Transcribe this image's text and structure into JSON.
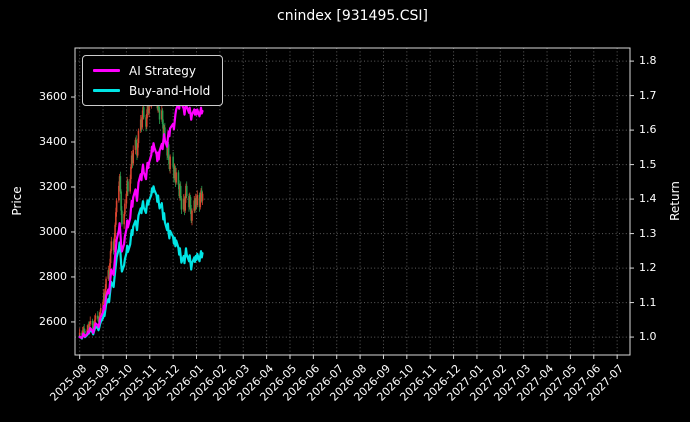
{
  "chart": {
    "title": "cnindex [931495.CSI]",
    "price_axis_label": "Price",
    "return_axis_label": "Return"
  },
  "legend": {
    "position": "upper left",
    "items": [
      {
        "label": "AI Strategy",
        "color": "#ff00ff"
      },
      {
        "label": "Buy-and-Hold",
        "color": "#00e5e5"
      }
    ]
  },
  "colors": {
    "background": "#000000",
    "text": "#ffffff",
    "grid": "#5e5e5e",
    "spine": "#d9d9d9",
    "candle_up": "#d9442f",
    "candle_down": "#2a9d4e",
    "ai_strategy": "#ff00ff",
    "buy_and_hold": "#00e5e5"
  },
  "chart_data": {
    "type": "candlestick_with_lines",
    "title": "cnindex [931495.CSI]",
    "xlabel": "",
    "ylabel_left": "Price",
    "ylabel_right": "Return",
    "grid": {
      "show": true,
      "line_style": "dotted"
    },
    "x_axis": {
      "domain": [
        -0.2,
        23.55
      ],
      "tick_labels": [
        "2025-08",
        "2025-09",
        "2025-10",
        "2025-11",
        "2025-12",
        "2026-01",
        "2026-02",
        "2026-03",
        "2026-04",
        "2026-05",
        "2026-06",
        "2026-07",
        "2026-08",
        "2026-09",
        "2026-10",
        "2026-11",
        "2026-12",
        "2027-01",
        "2027-02",
        "2027-03",
        "2027-04",
        "2027-05",
        "2027-06",
        "2027-07"
      ]
    },
    "price_axis": {
      "label": "Price",
      "min": 2453,
      "max": 3818,
      "ticks": [
        2600,
        2800,
        3000,
        3200,
        3400,
        3600
      ]
    },
    "return_axis": {
      "label": "Return",
      "min": 0.948,
      "max": 1.838,
      "ticks": [
        1.0,
        1.1,
        1.2,
        1.3,
        1.4,
        1.5,
        1.6,
        1.7,
        1.8
      ]
    },
    "candles": {
      "up_color": "#d9442f",
      "down_color": "#2a9d4e",
      "dates": [
        "2025-08-01",
        "2025-08-04",
        "2025-08-05",
        "2025-08-06",
        "2025-08-07",
        "2025-08-08",
        "2025-08-11",
        "2025-08-12",
        "2025-08-13",
        "2025-08-14",
        "2025-08-15",
        "2025-08-18",
        "2025-08-19",
        "2025-08-20",
        "2025-08-21",
        "2025-08-22",
        "2025-08-25",
        "2025-08-26",
        "2025-08-27",
        "2025-08-28",
        "2025-08-29",
        "2025-09-01",
        "2025-09-02",
        "2025-09-03",
        "2025-09-04",
        "2025-09-05",
        "2025-09-08",
        "2025-09-09",
        "2025-09-10",
        "2025-09-11",
        "2025-09-12",
        "2025-09-15",
        "2025-09-16",
        "2025-09-17",
        "2025-09-18",
        "2025-09-19",
        "2025-09-22",
        "2025-09-23",
        "2025-09-24",
        "2025-09-25",
        "2025-09-26",
        "2025-09-29",
        "2025-09-30",
        "2025-10-01",
        "2025-10-02",
        "2025-10-03",
        "2025-10-06",
        "2025-10-07",
        "2025-10-08",
        "2025-10-09",
        "2025-10-10",
        "2025-10-13",
        "2025-10-14",
        "2025-10-15",
        "2025-10-16",
        "2025-10-17",
        "2025-10-20",
        "2025-10-21",
        "2025-10-22",
        "2025-10-23",
        "2025-10-24",
        "2025-10-27",
        "2025-10-28",
        "2025-10-29",
        "2025-10-30",
        "2025-10-31",
        "2025-11-03",
        "2025-11-04",
        "2025-11-05",
        "2025-11-06",
        "2025-11-07",
        "2025-11-10",
        "2025-11-11",
        "2025-11-12",
        "2025-11-13",
        "2025-11-14",
        "2025-11-17",
        "2025-11-18",
        "2025-11-19",
        "2025-11-20",
        "2025-11-21",
        "2025-11-24",
        "2025-11-25",
        "2025-11-26",
        "2025-11-27",
        "2025-11-28",
        "2025-12-01",
        "2025-12-02",
        "2025-12-03",
        "2025-12-04",
        "2025-12-05",
        "2025-12-08",
        "2025-12-09",
        "2025-12-10",
        "2025-12-11",
        "2025-12-12",
        "2025-12-15",
        "2025-12-16",
        "2025-12-17",
        "2025-12-18",
        "2025-12-19",
        "2025-12-22",
        "2025-12-23",
        "2025-12-24",
        "2025-12-25",
        "2025-12-26",
        "2025-12-29",
        "2025-12-30",
        "2025-12-31",
        "2026-01-01",
        "2026-01-02",
        "2026-01-05",
        "2026-01-06",
        "2026-01-07",
        "2026-01-08",
        "2026-01-09"
      ],
      "open": [
        2538,
        2552,
        2540,
        2558,
        2571,
        2560,
        2549,
        2566,
        2582,
        2575,
        2590,
        2604,
        2585,
        2571,
        2592,
        2610,
        2628,
        2615,
        2600,
        2622,
        2645,
        2662,
        2690,
        2726,
        2705,
        2748,
        2792,
        2830,
        2808,
        2861,
        2915,
        2958,
        2920,
        2975,
        3032,
        3088,
        3140,
        3205,
        3248,
        3180,
        3095,
        3034,
        3080,
        3126,
        3170,
        3225,
        3180,
        3235,
        3290,
        3340,
        3305,
        3365,
        3410,
        3380,
        3340,
        3395,
        3450,
        3500,
        3465,
        3520,
        3555,
        3510,
        3468,
        3525,
        3560,
        3530,
        3558,
        3600,
        3648,
        3620,
        3665,
        3640,
        3598,
        3550,
        3595,
        3545,
        3500,
        3540,
        3480,
        3420,
        3465,
        3400,
        3340,
        3390,
        3320,
        3280,
        3335,
        3290,
        3240,
        3285,
        3220,
        3265,
        3210,
        3160,
        3205,
        3150,
        3100,
        3148,
        3095,
        3150,
        3205,
        3160,
        3110,
        3155,
        3100,
        3050,
        3095,
        3140,
        3105,
        3150,
        3120,
        3165,
        3110,
        3155,
        3185,
        3140
      ],
      "high": [
        2572,
        2562,
        2578,
        2581,
        2591,
        2570,
        2586,
        2592,
        2602,
        2600,
        2624,
        2614,
        2605,
        2602,
        2630,
        2638,
        2648,
        2625,
        2642,
        2655,
        2682,
        2700,
        2746,
        2736,
        2768,
        2802,
        2850,
        2840,
        2881,
        2925,
        2978,
        2968,
        2995,
        3042,
        3108,
        3150,
        3225,
        3258,
        3268,
        3190,
        3115,
        3090,
        3146,
        3180,
        3245,
        3235,
        3255,
        3300,
        3360,
        3350,
        3385,
        3420,
        3430,
        3390,
        3415,
        3460,
        3520,
        3510,
        3540,
        3565,
        3575,
        3520,
        3545,
        3570,
        3580,
        3568,
        3620,
        3658,
        3668,
        3675,
        3685,
        3650,
        3618,
        3605,
        3615,
        3555,
        3560,
        3550,
        3500,
        3475,
        3485,
        3410,
        3410,
        3400,
        3340,
        3345,
        3355,
        3300,
        3305,
        3295,
        3285,
        3275,
        3230,
        3215,
        3225,
        3160,
        3168,
        3158,
        3170,
        3215,
        3225,
        3170,
        3175,
        3165,
        3120,
        3105,
        3160,
        3150,
        3170,
        3160,
        3185,
        3175,
        3175,
        3195,
        3205,
        3180
      ],
      "low": [
        2528,
        2520,
        2530,
        2538,
        2550,
        2529,
        2539,
        2546,
        2565,
        2555,
        2580,
        2565,
        2561,
        2551,
        2582,
        2590,
        2605,
        2580,
        2590,
        2602,
        2635,
        2642,
        2680,
        2685,
        2695,
        2728,
        2782,
        2788,
        2798,
        2841,
        2905,
        2900,
        2910,
        2955,
        3022,
        3068,
        3130,
        3185,
        3170,
        3075,
        3024,
        3014,
        3070,
        3106,
        3160,
        3160,
        3170,
        3215,
        3280,
        3285,
        3295,
        3345,
        3370,
        3320,
        3330,
        3375,
        3440,
        3445,
        3455,
        3500,
        3500,
        3448,
        3458,
        3505,
        3520,
        3510,
        3548,
        3580,
        3610,
        3600,
        3630,
        3578,
        3540,
        3530,
        3535,
        3480,
        3490,
        3460,
        3410,
        3400,
        3390,
        3320,
        3330,
        3300,
        3270,
        3260,
        3280,
        3220,
        3230,
        3200,
        3210,
        3190,
        3150,
        3140,
        3140,
        3080,
        3090,
        3075,
        3085,
        3130,
        3150,
        3090,
        3100,
        3080,
        3040,
        3030,
        3085,
        3085,
        3095,
        3100,
        3110,
        3090,
        3100,
        3135,
        3130,
        3120
      ],
      "close": [
        2552,
        2540,
        2558,
        2571,
        2560,
        2549,
        2566,
        2582,
        2575,
        2590,
        2604,
        2585,
        2571,
        2592,
        2610,
        2628,
        2615,
        2600,
        2622,
        2645,
        2662,
        2690,
        2726,
        2705,
        2748,
        2792,
        2830,
        2808,
        2861,
        2915,
        2958,
        2920,
        2975,
        3032,
        3088,
        3140,
        3205,
        3248,
        3180,
        3095,
        3034,
        3080,
        3126,
        3170,
        3225,
        3180,
        3235,
        3290,
        3340,
        3305,
        3365,
        3410,
        3380,
        3340,
        3395,
        3450,
        3500,
        3465,
        3520,
        3555,
        3510,
        3468,
        3525,
        3560,
        3530,
        3558,
        3600,
        3648,
        3620,
        3665,
        3640,
        3598,
        3550,
        3595,
        3545,
        3500,
        3540,
        3480,
        3420,
        3465,
        3400,
        3340,
        3390,
        3320,
        3280,
        3335,
        3290,
        3240,
        3285,
        3220,
        3265,
        3210,
        3160,
        3205,
        3150,
        3100,
        3148,
        3095,
        3150,
        3205,
        3160,
        3110,
        3155,
        3100,
        3050,
        3095,
        3140,
        3105,
        3150,
        3120,
        3165,
        3110,
        3155,
        3185,
        3140,
        3170
      ]
    },
    "series": [
      {
        "name": "AI Strategy",
        "axis": "return",
        "color": "#ff00ff",
        "values": [
          1.0,
          0.998,
          1.004,
          1.01,
          1.006,
          1.002,
          1.009,
          1.016,
          1.013,
          1.02,
          1.026,
          1.018,
          1.012,
          1.022,
          1.031,
          1.04,
          1.034,
          1.028,
          1.038,
          1.05,
          1.058,
          1.072,
          1.09,
          1.08,
          1.098,
          1.118,
          1.138,
          1.126,
          1.15,
          1.175,
          1.196,
          1.18,
          1.205,
          1.232,
          1.258,
          1.282,
          1.31,
          1.33,
          1.302,
          1.268,
          1.248,
          1.27,
          1.292,
          1.312,
          1.338,
          1.318,
          1.345,
          1.37,
          1.395,
          1.378,
          1.405,
          1.428,
          1.412,
          1.395,
          1.42,
          1.448,
          1.472,
          1.455,
          1.482,
          1.5,
          1.478,
          1.458,
          1.485,
          1.505,
          1.49,
          1.505,
          1.528,
          1.552,
          1.538,
          1.562,
          1.55,
          1.53,
          1.51,
          1.535,
          1.515,
          1.54,
          1.56,
          1.545,
          1.568,
          1.588,
          1.57,
          1.552,
          1.578,
          1.596,
          1.582,
          1.605,
          1.618,
          1.602,
          1.625,
          1.645,
          1.66,
          1.676,
          1.662,
          1.68,
          1.695,
          1.678,
          1.662,
          1.645,
          1.662,
          1.68,
          1.668,
          1.65,
          1.665,
          1.648,
          1.63,
          1.645,
          1.66,
          1.645,
          1.658,
          1.645,
          1.66,
          1.64,
          1.652,
          1.665,
          1.648,
          1.655
        ]
      },
      {
        "name": "Buy-and-Hold",
        "axis": "return",
        "color": "#00e5e5",
        "values": [
          1.001,
          0.996,
          1.003,
          1.008,
          1.004,
          1.0,
          1.006,
          1.013,
          1.01,
          1.016,
          1.021,
          1.014,
          1.008,
          1.016,
          1.024,
          1.031,
          1.025,
          1.02,
          1.028,
          1.037,
          1.044,
          1.055,
          1.069,
          1.061,
          1.078,
          1.095,
          1.11,
          1.101,
          1.122,
          1.143,
          1.16,
          1.145,
          1.167,
          1.189,
          1.211,
          1.231,
          1.257,
          1.274,
          1.247,
          1.214,
          1.19,
          1.208,
          1.226,
          1.243,
          1.265,
          1.247,
          1.269,
          1.29,
          1.31,
          1.296,
          1.32,
          1.337,
          1.325,
          1.31,
          1.331,
          1.353,
          1.373,
          1.359,
          1.38,
          1.394,
          1.376,
          1.36,
          1.382,
          1.396,
          1.384,
          1.395,
          1.412,
          1.431,
          1.42,
          1.437,
          1.427,
          1.411,
          1.392,
          1.41,
          1.39,
          1.373,
          1.388,
          1.365,
          1.341,
          1.359,
          1.333,
          1.31,
          1.329,
          1.302,
          1.286,
          1.308,
          1.29,
          1.271,
          1.288,
          1.263,
          1.28,
          1.259,
          1.239,
          1.257,
          1.235,
          1.216,
          1.235,
          1.214,
          1.235,
          1.257,
          1.239,
          1.22,
          1.237,
          1.216,
          1.196,
          1.214,
          1.231,
          1.218,
          1.235,
          1.224,
          1.241,
          1.22,
          1.237,
          1.249,
          1.231,
          1.243
        ]
      }
    ]
  }
}
